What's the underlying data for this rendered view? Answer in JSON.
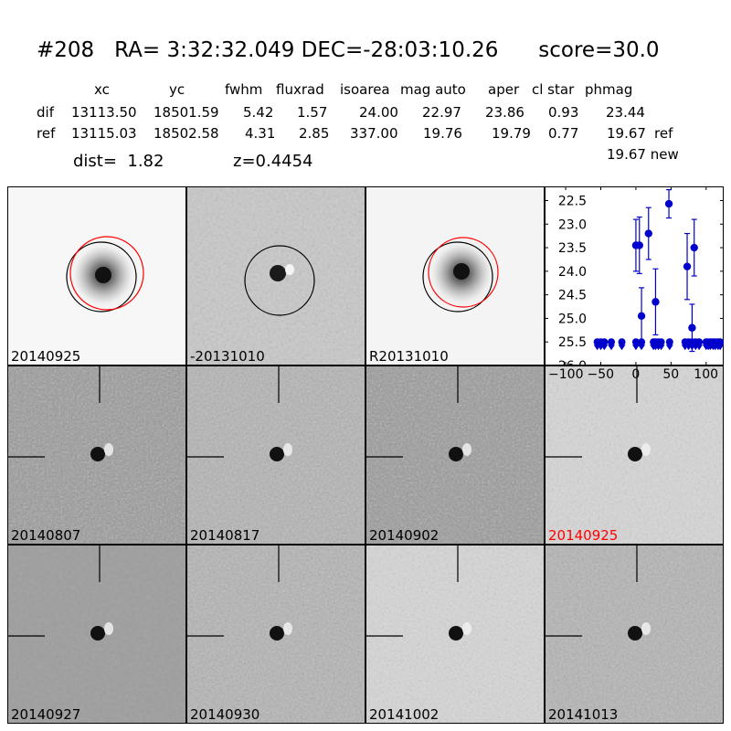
{
  "header": {
    "title": "#208   RA= 3:32:32.049 DEC=-28:03:10.26      score=30.0",
    "columns": [
      "xc",
      "yc",
      "fwhm",
      "fluxrad",
      "isoarea",
      "mag auto",
      "aper",
      "cl star",
      "phmag"
    ],
    "rows": [
      {
        "name": "dif",
        "values": [
          "13113.50",
          "18501.59",
          "5.42",
          "1.57",
          "24.00",
          "22.97",
          "23.86",
          "0.93",
          "23.44"
        ],
        "tag": ""
      },
      {
        "name": "ref",
        "values": [
          "13115.03",
          "18502.58",
          "4.31",
          "2.85",
          "337.00",
          "19.76",
          "19.79",
          "0.77",
          "19.67"
        ],
        "tag": "ref"
      }
    ],
    "dist": "dist=  1.82",
    "z": "z=0.4454",
    "new_phmag": "19.67 new"
  },
  "panels": {
    "top": [
      {
        "label": "20140925",
        "shade": "light",
        "red_circle": true
      },
      {
        "label": "-20131010",
        "shade": "mid",
        "red_circle": false
      },
      {
        "label": "R20131010",
        "shade": "light",
        "red_circle": true
      }
    ],
    "grid": [
      {
        "label": "20140807",
        "shade": "noisy-dark",
        "label_color": "#000000"
      },
      {
        "label": "20140817",
        "shade": "noisy-mid",
        "label_color": "#000000"
      },
      {
        "label": "20140902",
        "shade": "noisy-dark",
        "label_color": "#000000"
      },
      {
        "label": "20140925",
        "shade": "light",
        "label_color": "#ff0000"
      },
      {
        "label": "20140927",
        "shade": "smooth-dark",
        "label_color": "#000000"
      },
      {
        "label": "20140930",
        "shade": "noisy-mid",
        "label_color": "#000000"
      },
      {
        "label": "20141002",
        "shade": "light",
        "label_color": "#000000"
      },
      {
        "label": "20141013",
        "shade": "noisy-mid",
        "label_color": "#000000"
      }
    ]
  },
  "chart_data": {
    "type": "scatter",
    "color": "#0000cc",
    "xlim": [
      -130,
      125
    ],
    "ylim": [
      26.0,
      22.2
    ],
    "y_inverted": true,
    "xticks": [
      -100,
      -50,
      0,
      50,
      100
    ],
    "xtick_labels": [
      "−100",
      "−50",
      "0",
      "50",
      "100"
    ],
    "yticks": [
      22.5,
      23.0,
      23.5,
      24.0,
      24.5,
      25.0,
      25.5,
      26.0
    ],
    "ytick_labels": [
      "22.5",
      "23.0",
      "23.5",
      "24.0",
      "24.5",
      "25.0",
      "25.5",
      "26.0"
    ],
    "detections": [
      {
        "x": 0,
        "y": 23.45,
        "err": 0.55
      },
      {
        "x": 5,
        "y": 23.45,
        "err": 0.6
      },
      {
        "x": 8,
        "y": 24.95,
        "err": 0.6
      },
      {
        "x": 18,
        "y": 23.2,
        "err": 0.55
      },
      {
        "x": 28,
        "y": 24.65,
        "err": 0.7
      },
      {
        "x": 47,
        "y": 22.57,
        "err": 0.3
      },
      {
        "x": 73,
        "y": 23.9,
        "err": 0.7
      },
      {
        "x": 80,
        "y": 25.2,
        "err": 0.5
      },
      {
        "x": 83,
        "y": 23.5,
        "err": 0.6
      }
    ],
    "upper_limits": {
      "y": 25.5,
      "x": [
        -55,
        -50,
        -45,
        -35,
        -20,
        0,
        8,
        25,
        28,
        32,
        36,
        48,
        70,
        75,
        80,
        85,
        90,
        100,
        103,
        106,
        110,
        113,
        117,
        120
      ]
    }
  }
}
